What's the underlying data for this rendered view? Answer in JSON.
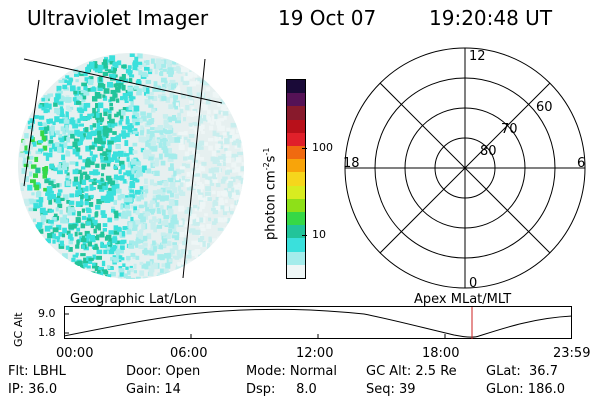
{
  "header": {
    "instrument": "Ultraviolet Imager",
    "date": "19 Oct 07",
    "time": "19:20:48 UT"
  },
  "colorbar": {
    "label": "photon cm-2s-1",
    "label_main": "photon cm",
    "label_exp1": "-2",
    "label_s": "s",
    "label_exp2": "-1",
    "ticks": [
      "100",
      "10"
    ],
    "colors": [
      "#1a0a38",
      "#551256",
      "#881a2c",
      "#b8101a",
      "#e0202a",
      "#f06a10",
      "#f8a40a",
      "#f6d61c",
      "#d8ec20",
      "#8ee018",
      "#36d846",
      "#22c49a",
      "#3ae0dc",
      "#a4eceb",
      "#eef6f6"
    ]
  },
  "polar": {
    "labels": {
      "top": "12",
      "bottom": "0",
      "left": "18",
      "right": "6"
    },
    "rings": [
      "80",
      "70",
      "60"
    ]
  },
  "timeline": {
    "left_label": "Geographic Lat/Lon",
    "right_label": "Apex MLat/MLT",
    "yaxis_label": "GC Alt",
    "yticks": [
      "9.0",
      "1.8"
    ],
    "xticks": [
      "00:00",
      "06:00",
      "12:00",
      "18:00",
      "23:59"
    ],
    "marker_color": "#cc2222"
  },
  "status": {
    "row1": [
      "Flt: LBHL",
      "Door: Open",
      "Mode: Normal",
      "GC Alt: 2.5 Re",
      "GLat:  36.7"
    ],
    "row2": [
      "IP: 36.0",
      "Gain: 14",
      "Dsp:     8.0",
      "Seq: 39",
      "GLon: 186.0"
    ]
  }
}
